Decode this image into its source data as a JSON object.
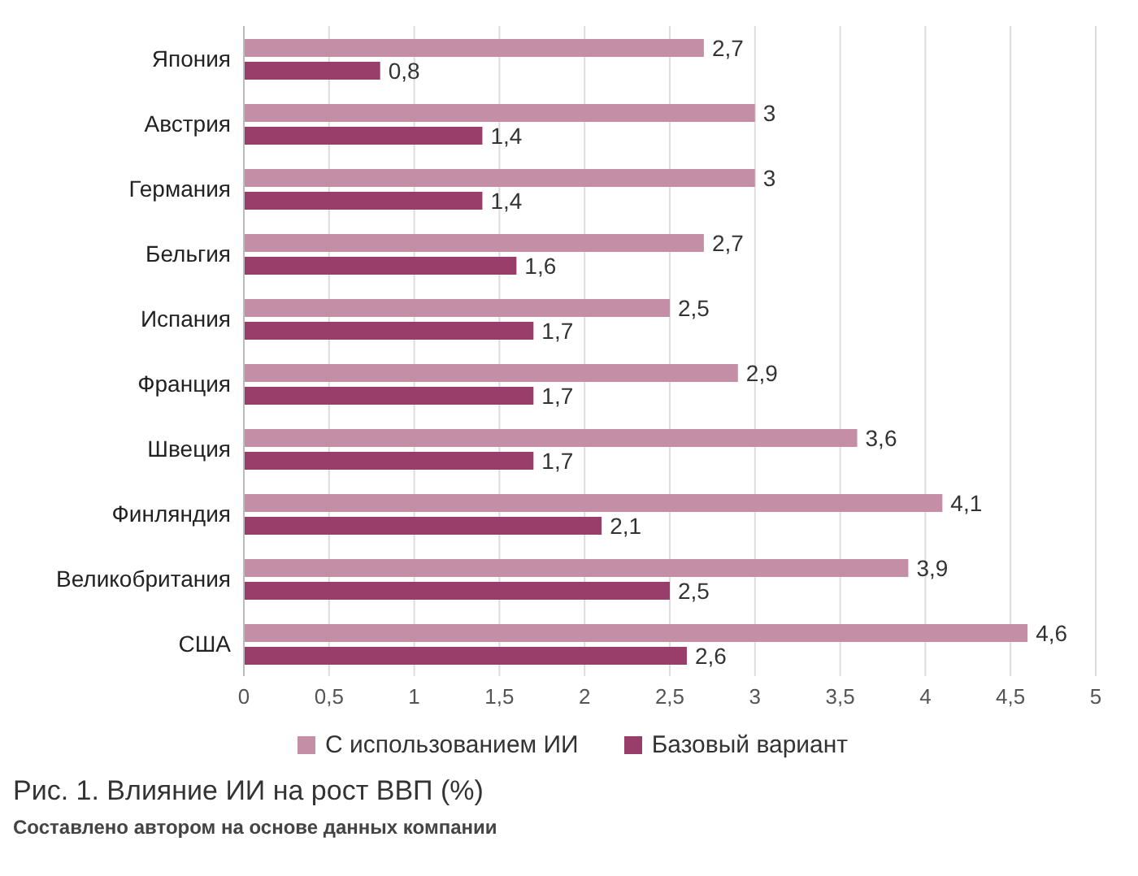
{
  "chart_data": {
    "type": "bar",
    "orientation": "horizontal",
    "title": "Рис. 1. Влияние ИИ на рост ВВП (%)",
    "annotations": [
      "Составлено автором на основе данных компании"
    ],
    "categories": [
      "Япония",
      "Австрия",
      "Германия",
      "Бельгия",
      "Испания",
      "Франция",
      "Швеция",
      "Финляндия",
      "Великобритания",
      "США"
    ],
    "series": [
      {
        "name": "С использованием ИИ",
        "color": "#c48fa6",
        "values": [
          2.7,
          3,
          3,
          2.7,
          2.5,
          2.9,
          3.6,
          4.1,
          3.9,
          4.6
        ],
        "value_labels": [
          "2,7",
          "3",
          "3",
          "2,7",
          "2,5",
          "2,9",
          "3,6",
          "4,1",
          "3,9",
          "4,6"
        ]
      },
      {
        "name": "Базовый вариант",
        "color": "#993d6a",
        "values": [
          0.8,
          1.4,
          1.4,
          1.6,
          1.7,
          1.7,
          1.7,
          2.1,
          2.5,
          2.6
        ],
        "value_labels": [
          "0,8",
          "1,4",
          "1,4",
          "1,6",
          "1,7",
          "1,7",
          "1,7",
          "2,1",
          "2,5",
          "2,6"
        ]
      }
    ],
    "xlim": [
      0,
      5
    ],
    "xticks": [
      0,
      {
        "value": 0.5,
        "label": "0,5"
      },
      1,
      {
        "value": 1.5,
        "label": "1,5"
      },
      2,
      {
        "value": 2.5,
        "label": "2,5"
      },
      3,
      {
        "value": 3.5,
        "label": "3,5"
      },
      4,
      {
        "value": 4.5,
        "label": "4,5"
      },
      5
    ],
    "grid": "x",
    "legend": "bottom left"
  }
}
